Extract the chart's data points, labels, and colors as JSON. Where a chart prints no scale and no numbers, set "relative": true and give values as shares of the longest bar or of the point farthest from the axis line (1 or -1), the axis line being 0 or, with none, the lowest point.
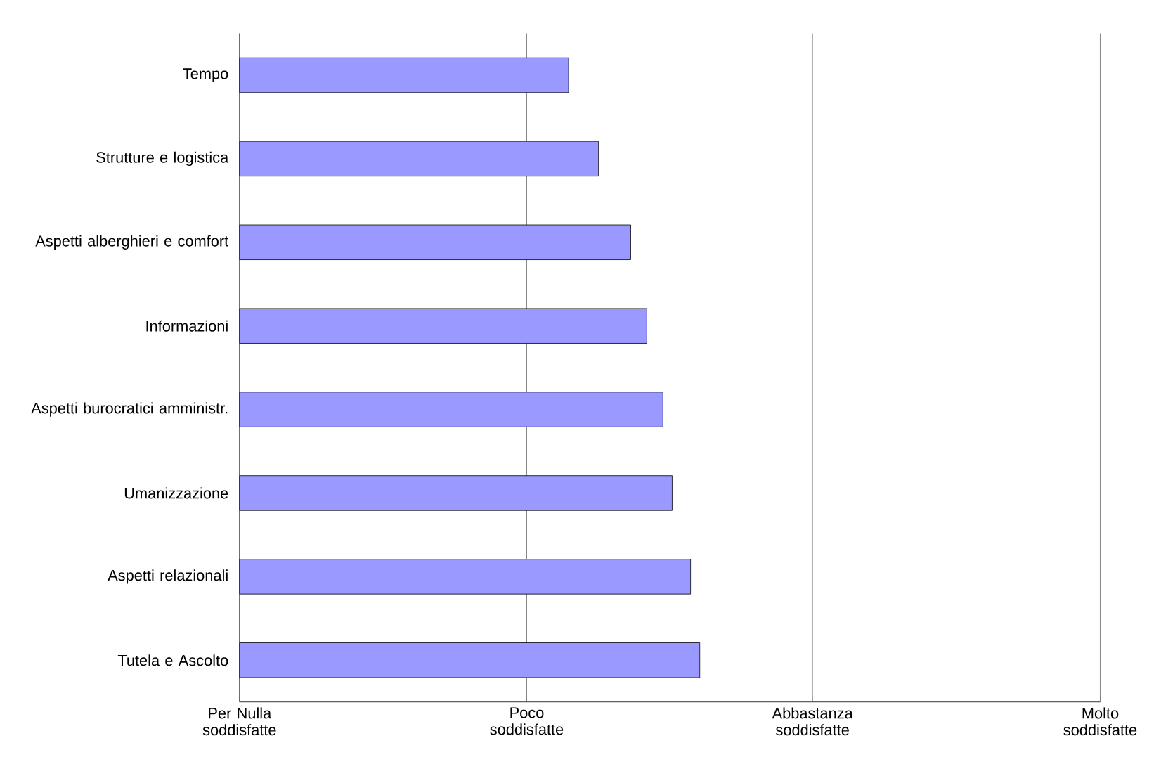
{
  "chart_data": {
    "type": "bar",
    "orientation": "horizontal",
    "relative": true,
    "categories": [
      "Tempo",
      "Strutture e logistica",
      "Aspetti alberghieri e comfort",
      "Informazioni",
      "Aspetti burocratici amministr.",
      "Umanizzazione",
      "Aspetti relazionali",
      "Tutela e Ascolto"
    ],
    "values": [
      0.715,
      0.78,
      0.85,
      0.885,
      0.92,
      0.94,
      0.98,
      1
    ],
    "color": "#9999ff",
    "ref_lines": [
      {
        "axis": "x",
        "value": 0,
        "label": "Per Nulla soddisfatte"
      },
      {
        "axis": "x",
        "value": 0.624,
        "label": "Poco soddisfatte"
      },
      {
        "axis": "x",
        "value": 1.245,
        "label": "Abbastanza soddisfatte"
      },
      {
        "axis": "x",
        "value": 1.87,
        "label": "Molto soddisfatte"
      }
    ]
  }
}
